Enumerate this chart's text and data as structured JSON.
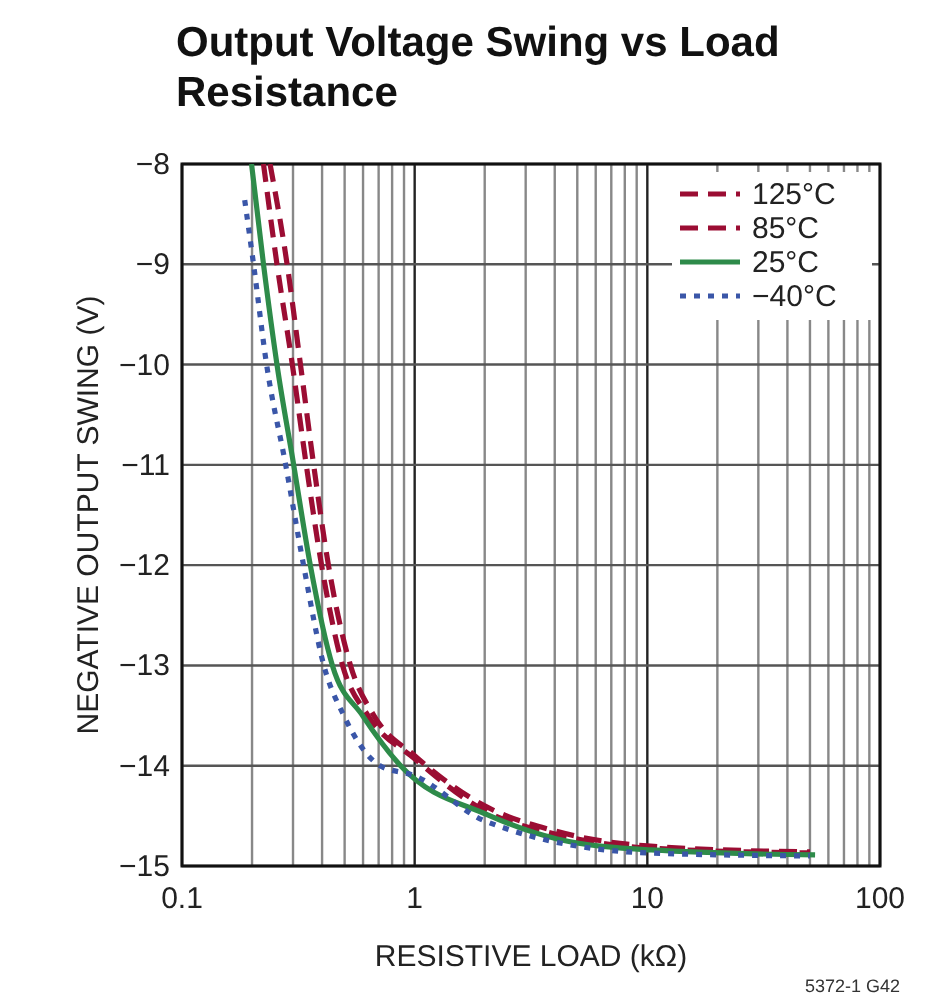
{
  "chart_data": {
    "type": "line",
    "title": "Output Voltage Swing vs Load Resistance",
    "xlabel": "RESISTIVE LOAD (kΩ)",
    "ylabel": "NEGATIVE OUTPUT SWING (V)",
    "annotations": [
      "5372-1 G42"
    ],
    "log": "x",
    "grid": true,
    "legend": "top right",
    "xlim": [
      0.1,
      100
    ],
    "ylim": [
      -15,
      -8
    ],
    "xticks": [
      0.1,
      {
        "value": 0.2,
        "label": null
      },
      {
        "value": 0.3,
        "label": null
      },
      {
        "value": 0.4,
        "label": null
      },
      {
        "value": 0.5,
        "label": null
      },
      {
        "value": 0.6,
        "label": null
      },
      {
        "value": 0.7,
        "label": null
      },
      {
        "value": 0.8,
        "label": null
      },
      {
        "value": 0.9,
        "label": null
      },
      1,
      {
        "value": 2,
        "label": null
      },
      {
        "value": 3,
        "label": null
      },
      {
        "value": 4,
        "label": null
      },
      {
        "value": 5,
        "label": null
      },
      {
        "value": 6,
        "label": null
      },
      {
        "value": 7,
        "label": null
      },
      {
        "value": 8,
        "label": null
      },
      {
        "value": 9,
        "label": null
      },
      10,
      {
        "value": 20,
        "label": null
      },
      {
        "value": 30,
        "label": null
      },
      {
        "value": 40,
        "label": null
      },
      {
        "value": 50,
        "label": null
      },
      {
        "value": 60,
        "label": null
      },
      {
        "value": 70,
        "label": null
      },
      {
        "value": 80,
        "label": null
      },
      {
        "value": 90,
        "label": null
      },
      100
    ],
    "yticks": [
      {
        "value": -15,
        "label": "−15"
      },
      {
        "value": -14,
        "label": "−14"
      },
      {
        "value": -13,
        "label": "−13"
      },
      {
        "value": -12,
        "label": "−12"
      },
      {
        "value": -11,
        "label": "−11"
      },
      {
        "value": -10,
        "label": "−10"
      },
      {
        "value": -9,
        "label": "−9"
      },
      {
        "value": -8,
        "label": "−8"
      }
    ],
    "series": [
      {
        "name": "125°C",
        "color": "#9b0d33",
        "line_style": "dashed",
        "x": [
          0.239,
          0.283,
          0.323,
          0.368,
          0.426,
          0.53,
          0.668,
          1,
          2,
          4,
          10,
          50
        ],
        "values": [
          -8,
          -9,
          -10,
          -11,
          -12,
          -13,
          -13.5,
          -13.9,
          -14.4,
          -14.65,
          -14.8,
          -14.86
        ]
      },
      {
        "name": "85°C",
        "color": "#9b0d33",
        "line_style": "dashed",
        "x": [
          0.224,
          0.256,
          0.298,
          0.342,
          0.398,
          0.49,
          0.63,
          1,
          2,
          4,
          10,
          50
        ],
        "values": [
          -8,
          -9,
          -10,
          -11,
          -12,
          -13,
          -13.5,
          -13.93,
          -14.45,
          -14.68,
          -14.82,
          -14.87
        ]
      },
      {
        "name": "25°C",
        "color": "#2e8b4a",
        "line_style": "solid",
        "x": [
          0.199,
          0.224,
          0.256,
          0.302,
          0.356,
          0.443,
          0.597,
          0.87,
          2.06,
          4.1,
          10.4,
          52.6
        ],
        "values": [
          -8,
          -9,
          -10,
          -11,
          -12,
          -13,
          -13.5,
          -14,
          -14.49,
          -14.73,
          -14.84,
          -14.89
        ]
      },
      {
        "name": "−40°C",
        "color": "#3a56a8",
        "line_style": "dotted",
        "x": [
          0.186,
          0.203,
          0.231,
          0.279,
          0.333,
          0.407,
          0.496,
          0.71,
          1,
          2,
          10,
          50
        ],
        "values": [
          -8.36,
          -9,
          -10,
          -11,
          -12,
          -13,
          -13.5,
          -14,
          -14.1,
          -14.55,
          -14.87,
          -14.9
        ]
      }
    ]
  }
}
